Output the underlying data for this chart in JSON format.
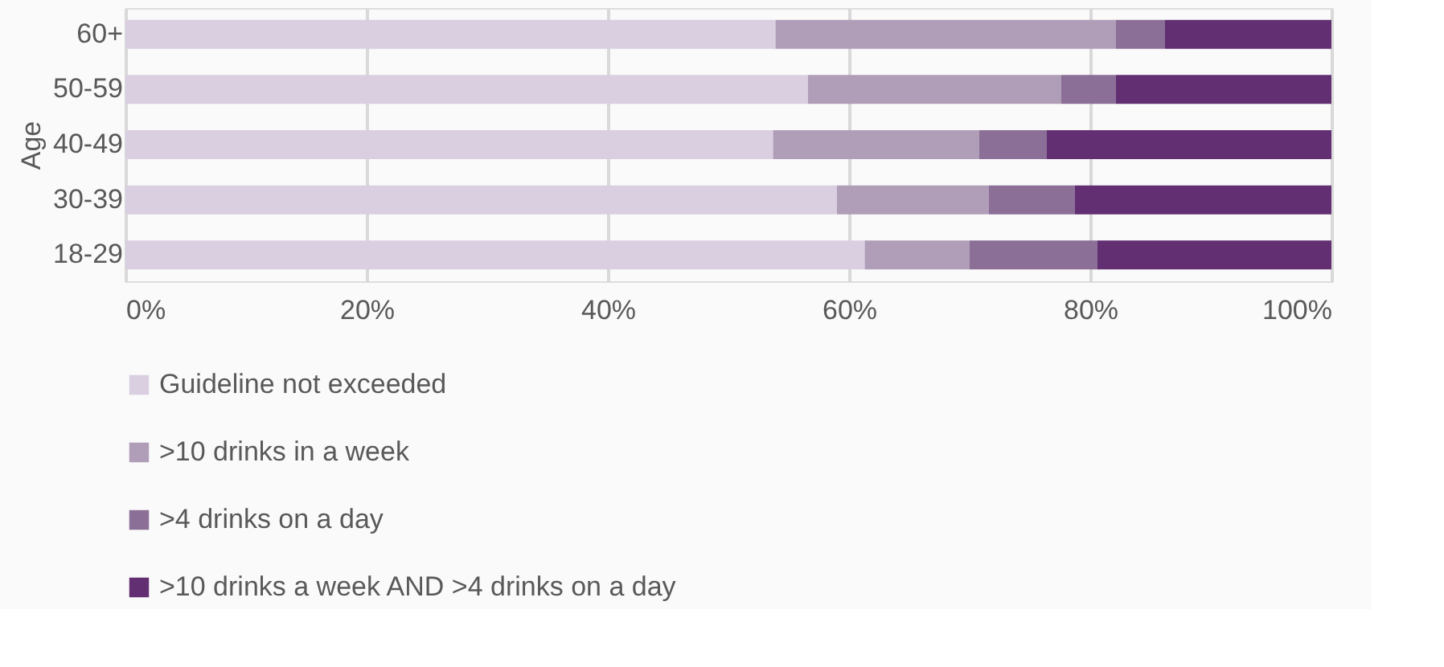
{
  "chart_data": {
    "type": "bar",
    "orientation": "horizontal",
    "stacked": true,
    "ylabel": "Age",
    "categories": [
      "60+",
      "50-59",
      "40-49",
      "30-39",
      "18-29"
    ],
    "series": [
      {
        "name": "Guideline not exceeded",
        "color": "#d9cfe0",
        "values": [
          53.9,
          56.6,
          53.7,
          59.0,
          61.3
        ]
      },
      {
        "name": ">10 drinks in a week",
        "color": "#b09eb9",
        "values": [
          28.2,
          21.0,
          17.1,
          12.6,
          8.7
        ]
      },
      {
        "name": ">4 drinks on a day",
        "color": "#8b6f97",
        "values": [
          4.1,
          4.5,
          5.6,
          7.1,
          10.6
        ]
      },
      {
        "name": ">10 drinks a week AND >4 drinks on a day",
        "color": "#622f72",
        "values": [
          13.8,
          17.9,
          23.6,
          21.3,
          19.4
        ]
      }
    ],
    "xlim": [
      0,
      100
    ],
    "xticks": [
      {
        "value": 0,
        "label": "0%"
      },
      {
        "value": 20,
        "label": "20%"
      },
      {
        "value": 40,
        "label": "40%"
      },
      {
        "value": 60,
        "label": "60%"
      },
      {
        "value": 80,
        "label": "80%"
      },
      {
        "value": 100,
        "label": "100%"
      }
    ],
    "grid": "x",
    "legend": "bottom"
  }
}
